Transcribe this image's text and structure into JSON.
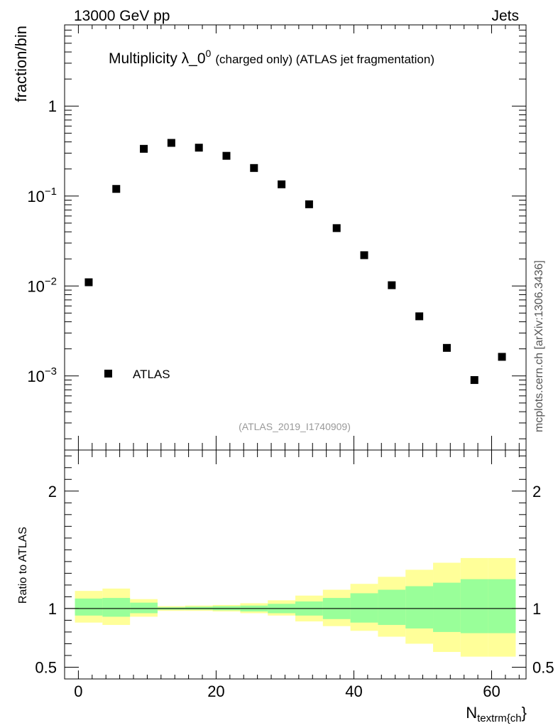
{
  "header": {
    "energy_label": "13000 GeV pp",
    "category_label": "Jets"
  },
  "side_label": "mcplots.cern.ch [arXiv:1306.3436]",
  "chart_data": [
    {
      "type": "scatter",
      "title_main": "Multiplicity λ_0",
      "title_sup": "0",
      "title_rest": "(charged only) (ATLAS jet fragmentation)",
      "ylabel": "fraction/bin",
      "yscale": "log",
      "ylim": [
        0.00015,
        8
      ],
      "xlim": [
        -2,
        65
      ],
      "y_ticks": [
        {
          "value": 1,
          "label": "1",
          "exp": ""
        },
        {
          "value": 0.1,
          "label": "10",
          "exp": "−1"
        },
        {
          "value": 0.01,
          "label": "10",
          "exp": "−2"
        },
        {
          "value": 0.001,
          "label": "10",
          "exp": "−3"
        }
      ],
      "analysis_label": "(ATLAS_2019_I1740909)",
      "legend": {
        "position": "lower-left",
        "entries": [
          "ATLAS"
        ]
      },
      "series": [
        {
          "name": "ATLAS",
          "marker": "square",
          "color": "#000000",
          "x": [
            1.5,
            5.5,
            9.5,
            13.5,
            17.5,
            21.5,
            25.5,
            29.5,
            33.5,
            37.5,
            41.5,
            45.5,
            49.5,
            53.5,
            57.5,
            61.5
          ],
          "y": [
            0.011,
            0.12,
            0.335,
            0.39,
            0.345,
            0.28,
            0.205,
            0.135,
            0.081,
            0.044,
            0.022,
            0.0102,
            0.0046,
            0.00205,
            0.0009,
            0.00163
          ]
        }
      ]
    },
    {
      "type": "area",
      "ylabel": "Ratio to ATLAS",
      "xlabel_main": "N",
      "xlabel_sub": "textrm{ch",
      "xlabel_tail": "}",
      "ylim": [
        0.4,
        2.35
      ],
      "xlim": [
        -2,
        65
      ],
      "y_ticks": [
        0.5,
        1,
        2
      ],
      "y_tick_labels": [
        "0.5",
        "1",
        "2"
      ],
      "x_ticks": [
        0,
        20,
        40,
        60
      ],
      "x_tick_labels": [
        "0",
        "20",
        "40",
        "60"
      ],
      "reference_line": 1,
      "bin_edges": [
        -0.5,
        3.5,
        7.5,
        11.5,
        15.5,
        19.5,
        23.5,
        27.5,
        31.5,
        35.5,
        39.5,
        43.5,
        47.5,
        51.5,
        55.5,
        59.5,
        63.5
      ],
      "bands": [
        {
          "name": "total uncertainty",
          "color": "#ffff99",
          "low": [
            0.88,
            0.86,
            0.93,
            0.98,
            0.98,
            0.975,
            0.96,
            0.94,
            0.89,
            0.85,
            0.81,
            0.76,
            0.7,
            0.63,
            0.59,
            0.59
          ],
          "high": [
            1.15,
            1.17,
            1.08,
            1.02,
            1.025,
            1.03,
            1.045,
            1.07,
            1.11,
            1.16,
            1.21,
            1.27,
            1.33,
            1.39,
            1.43,
            1.43
          ]
        },
        {
          "name": "statistical uncertainty",
          "color": "#99ff99",
          "low": [
            0.94,
            0.93,
            0.96,
            0.99,
            0.99,
            0.985,
            0.975,
            0.96,
            0.94,
            0.91,
            0.88,
            0.86,
            0.83,
            0.8,
            0.79,
            0.79
          ],
          "high": [
            1.085,
            1.09,
            1.05,
            1.01,
            1.015,
            1.02,
            1.025,
            1.04,
            1.06,
            1.09,
            1.13,
            1.16,
            1.19,
            1.22,
            1.25,
            1.25
          ]
        }
      ]
    }
  ]
}
